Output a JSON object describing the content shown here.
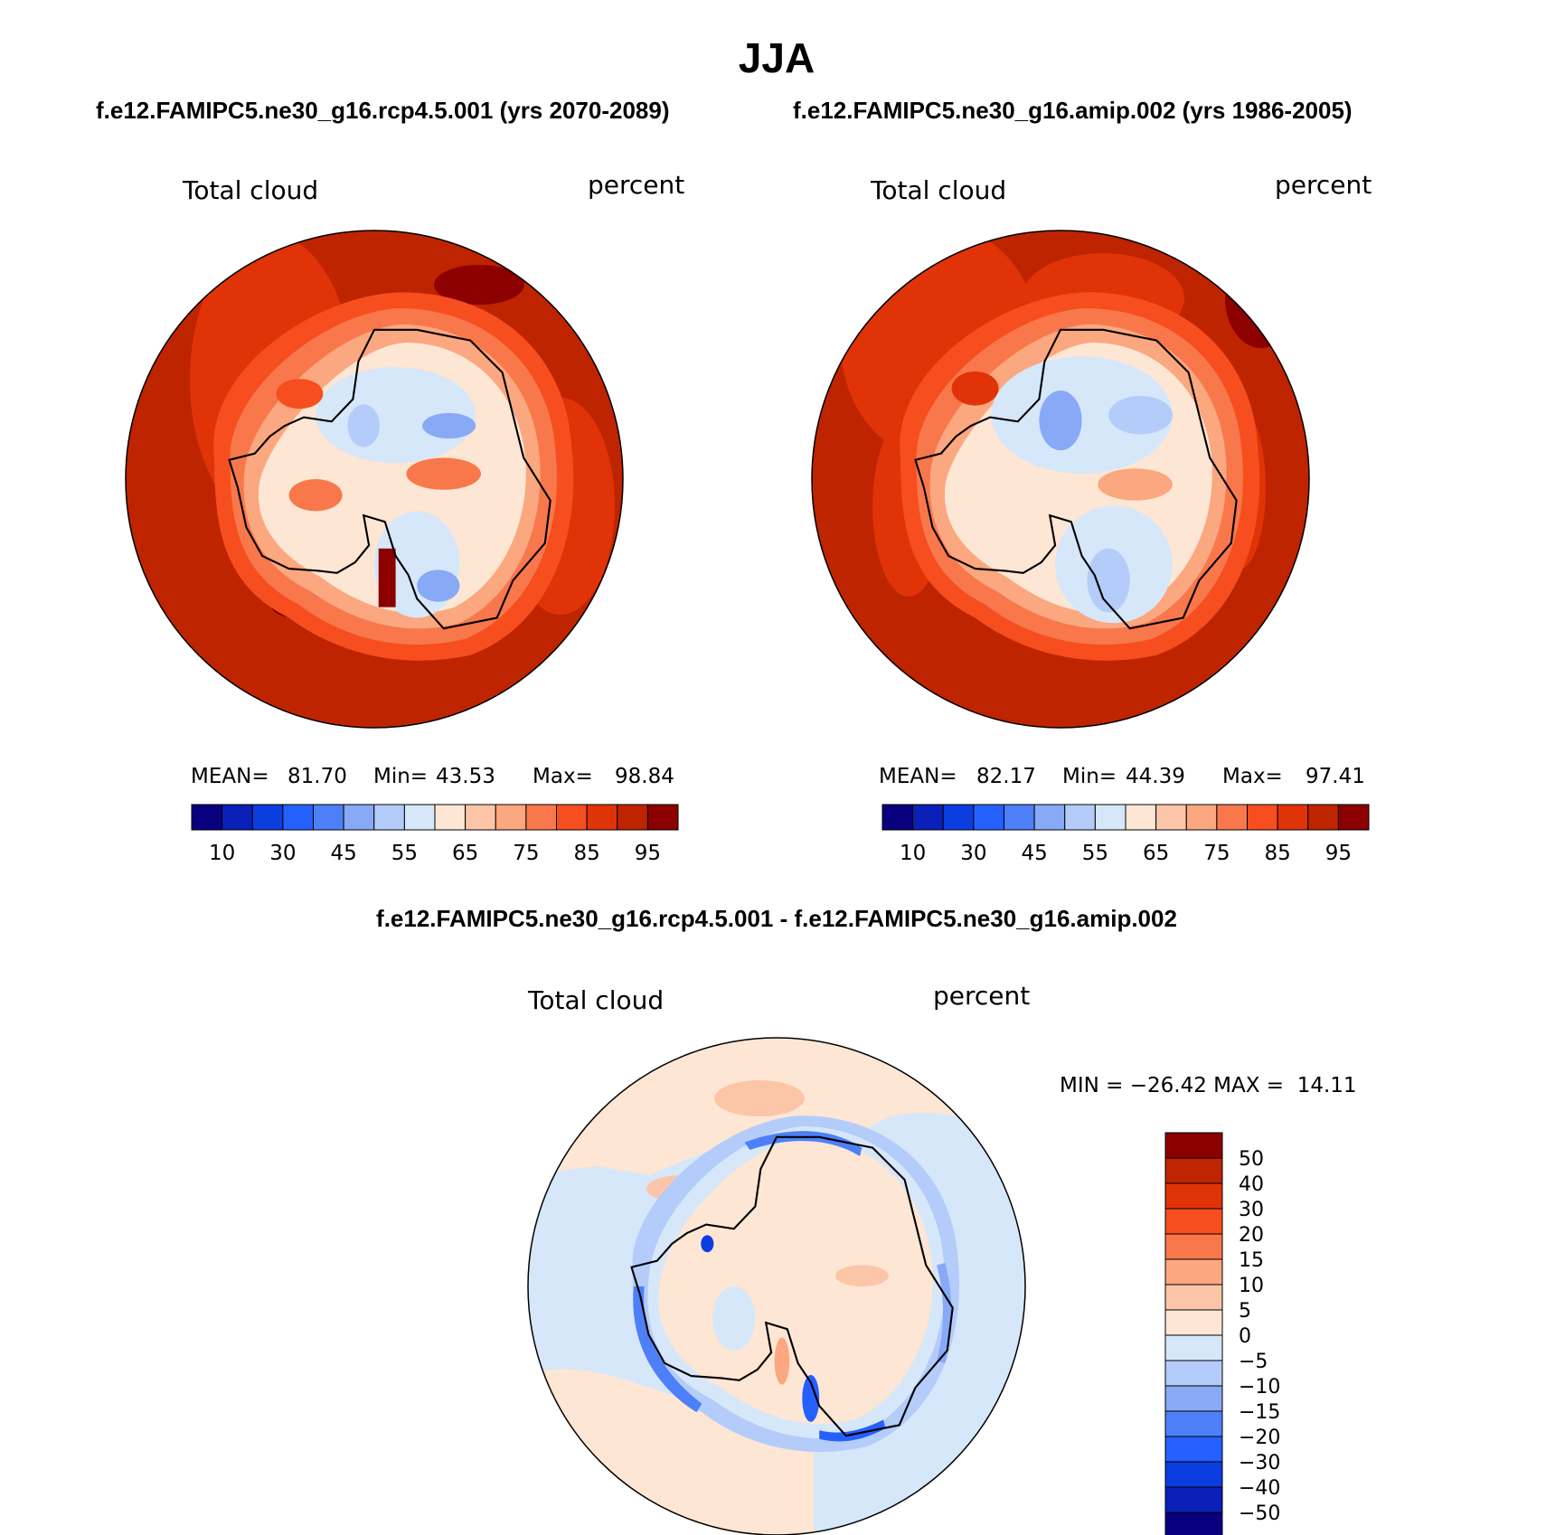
{
  "chart_data": {
    "type": "heatmap",
    "title": "JJA",
    "panels": [
      {
        "subtitle": "f.e12.FAMIPC5.ne30_g16.rcp4.5.001 (yrs 2070-2089)",
        "variable": "Total cloud",
        "units": "percent",
        "stats": {
          "mean_label": "MEAN=",
          "mean": "81.70",
          "min_label": "Min=",
          "min": "43.53",
          "max_label": "Max=",
          "max": "98.84"
        },
        "colorbar_ticks": [
          "10",
          "30",
          "45",
          "55",
          "65",
          "75",
          "85",
          "95"
        ]
      },
      {
        "subtitle": "f.e12.FAMIPC5.ne30_g16.amip.002 (yrs 1986-2005)",
        "variable": "Total cloud",
        "units": "percent",
        "stats": {
          "mean_label": "MEAN=",
          "mean": "82.17",
          "min_label": "Min=",
          "min": "44.39",
          "max_label": "Max=",
          "max": "97.41"
        },
        "colorbar_ticks": [
          "10",
          "30",
          "45",
          "55",
          "65",
          "75",
          "85",
          "95"
        ]
      },
      {
        "subtitle": "f.e12.FAMIPC5.ne30_g16.rcp4.5.001 - f.e12.FAMIPC5.ne30_g16.amip.002",
        "variable": "Total cloud",
        "units": "percent",
        "stats_text": "MIN = −26.42 MAX =  14.11",
        "colorbar_ticks": [
          "50",
          "40",
          "30",
          "20",
          "15",
          "10",
          "5",
          "0",
          "−5",
          "−10",
          "−15",
          "−20",
          "−30",
          "−40",
          "−50"
        ]
      }
    ],
    "abs_colors": [
      "#08007f",
      "#0a20b8",
      "#0c3de0",
      "#2560ff",
      "#4d80f8",
      "#87a9f6",
      "#b4ccfa",
      "#d6e7fa",
      "#fde6d4",
      "#fdc5a8",
      "#fba780",
      "#f8784b",
      "#f64e1f",
      "#e03308",
      "#bf2400",
      "#8c0000"
    ],
    "diff_colors": [
      "#8c0000",
      "#bf2400",
      "#e03308",
      "#f64e1f",
      "#f8784b",
      "#fba780",
      "#fdc5a8",
      "#fde6d4",
      "#d6e7fa",
      "#b4ccfa",
      "#87a9f6",
      "#4d80f8",
      "#2560ff",
      "#0c3de0",
      "#0a20b8",
      "#08007f"
    ]
  }
}
